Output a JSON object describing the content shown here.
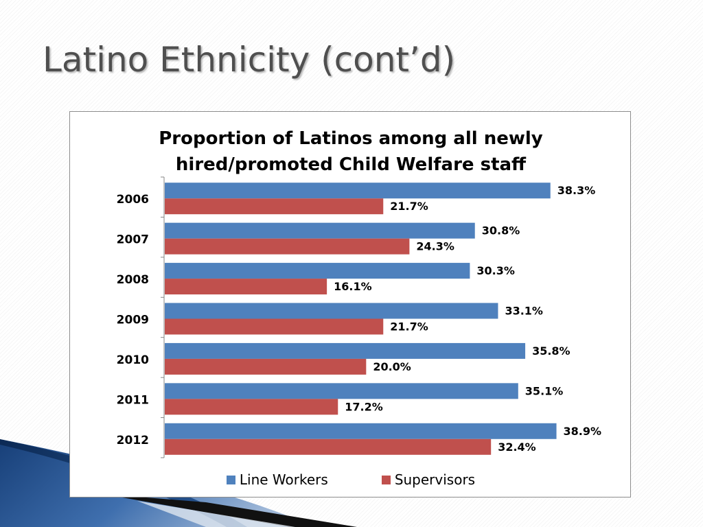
{
  "slide": {
    "title": "Latino Ethnicity (cont’d)"
  },
  "colors": {
    "line_workers": "#4f81bd",
    "supervisors": "#c0504d",
    "deco_blue": "#1f4e8c"
  },
  "chart_data": {
    "type": "bar",
    "orientation": "horizontal",
    "title_lines": [
      "Proportion of Latinos among all newly",
      "hired/promoted Child Welfare staff"
    ],
    "categories": [
      "2006",
      "2007",
      "2008",
      "2009",
      "2010",
      "2011",
      "2012"
    ],
    "series": [
      {
        "name": "Line Workers",
        "values": [
          38.3,
          30.8,
          30.3,
          33.1,
          35.8,
          35.1,
          38.9
        ],
        "labels": [
          "38.3%",
          "30.8%",
          "30.3%",
          "33.1%",
          "35.8%",
          "35.1%",
          "38.9%"
        ]
      },
      {
        "name": "Supervisors",
        "values": [
          21.7,
          24.3,
          16.1,
          21.7,
          20.0,
          17.2,
          32.4
        ],
        "labels": [
          "21.7%",
          "24.3%",
          "16.1%",
          "21.7%",
          "20.0%",
          "17.2%",
          "32.4%"
        ]
      }
    ],
    "xlim": [
      0,
      45
    ],
    "grid": false,
    "legend_position": "bottom"
  }
}
